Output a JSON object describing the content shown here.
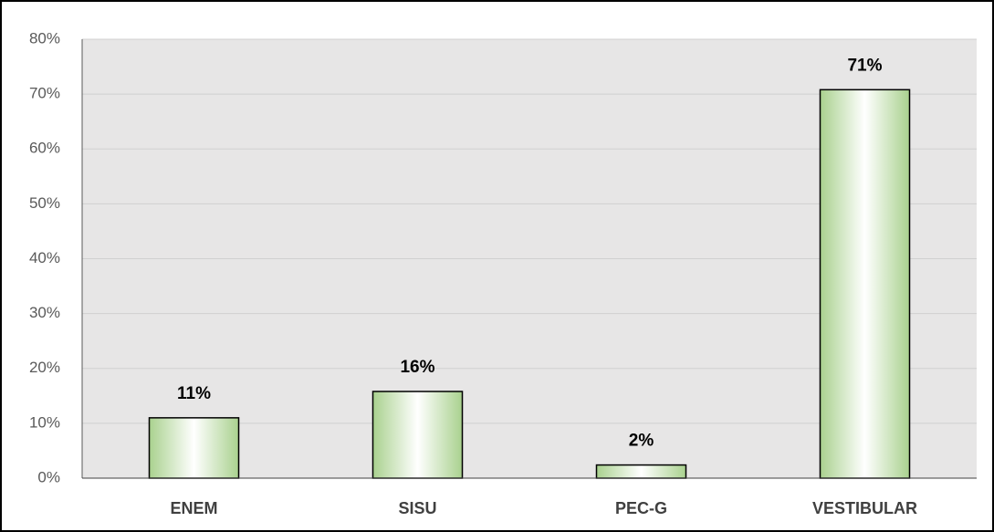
{
  "chart_data": {
    "type": "bar",
    "categories": [
      "ENEM",
      "SISU",
      "PEC-G",
      "VESTIBULAR"
    ],
    "values": [
      11,
      15.8,
      2.4,
      70.8
    ],
    "value_labels": [
      "11%",
      "16%",
      "2%",
      "71%"
    ],
    "color": "#a9d18e",
    "ylim": [
      0,
      80
    ],
    "yticks": [
      {
        "value": 0,
        "label": "0%"
      },
      {
        "value": 10,
        "label": "10%"
      },
      {
        "value": 20,
        "label": "20%"
      },
      {
        "value": 30,
        "label": "30%"
      },
      {
        "value": 40,
        "label": "40%"
      },
      {
        "value": 50,
        "label": "50%"
      },
      {
        "value": 60,
        "label": "60%"
      },
      {
        "value": 70,
        "label": "70%"
      },
      {
        "value": 80,
        "label": "80%"
      }
    ],
    "grid": true
  }
}
